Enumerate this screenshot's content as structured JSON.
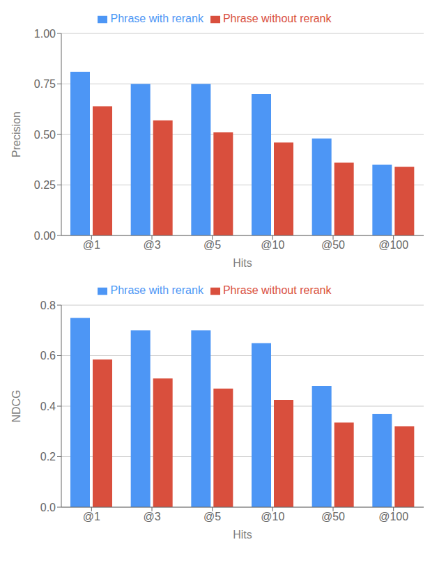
{
  "chart_data": [
    {
      "type": "bar",
      "categories": [
        "@1",
        "@3",
        "@5",
        "@10",
        "@50",
        "@100"
      ],
      "series": [
        {
          "name": "Phrase with rerank",
          "color": "#4d96f5",
          "values": [
            0.81,
            0.75,
            0.75,
            0.7,
            0.48,
            0.35
          ]
        },
        {
          "name": "Phrase without rerank",
          "color": "#d94f3d",
          "values": [
            0.64,
            0.57,
            0.51,
            0.46,
            0.36,
            0.34
          ]
        }
      ],
      "x_label": "Hits",
      "y_label": "Precision",
      "ylim": [
        0.0,
        1.0
      ],
      "yticks": [
        {
          "value": 0.0,
          "label": "0.00"
        },
        0.25,
        {
          "value": 0.5,
          "label": "0.50"
        },
        0.75,
        {
          "value": 1.0,
          "label": "1.00"
        }
      ],
      "grid": true,
      "legend": "top"
    },
    {
      "type": "bar",
      "categories": [
        "@1",
        "@3",
        "@5",
        "@10",
        "@50",
        "@100"
      ],
      "series": [
        {
          "name": "Phrase with rerank",
          "color": "#4d96f5",
          "values": [
            0.75,
            0.7,
            0.7,
            0.65,
            0.48,
            0.37
          ]
        },
        {
          "name": "Phrase without rerank",
          "color": "#d94f3d",
          "values": [
            0.585,
            0.51,
            0.47,
            0.425,
            0.335,
            0.32
          ]
        }
      ],
      "x_label": "Hits",
      "y_label": "NDCG",
      "ylim": [
        0.0,
        0.8
      ],
      "yticks": [
        {
          "value": 0.0,
          "label": "0.0"
        },
        0.2,
        0.4,
        0.6,
        0.8
      ],
      "grid": true,
      "legend": "top"
    }
  ]
}
